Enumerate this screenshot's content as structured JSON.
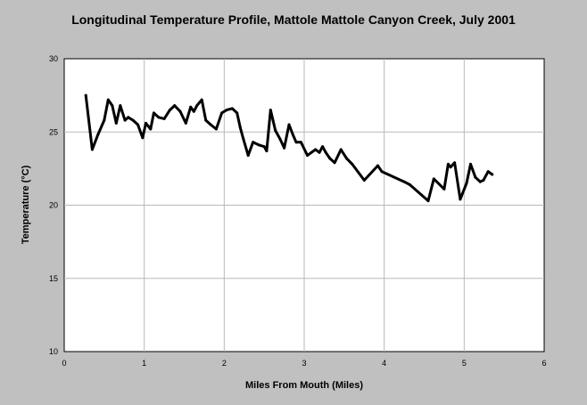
{
  "chart_data": {
    "type": "line",
    "title": "Longitudinal Temperature Profile, Mattole Mattole Canyon Creek, July 2001",
    "xlabel": "Miles From Mouth (Miles)",
    "ylabel": "Temperature (°C)",
    "xlim": [
      0,
      6
    ],
    "ylim": [
      10,
      30
    ],
    "xticks": [
      "0",
      "1",
      "2",
      "3",
      "4",
      "5",
      "6"
    ],
    "yticks": [
      "10",
      "15",
      "20",
      "25",
      "30"
    ],
    "grid": true,
    "line_color": "#000000",
    "x": [
      0.27,
      0.35,
      0.42,
      0.5,
      0.55,
      0.6,
      0.65,
      0.7,
      0.76,
      0.8,
      0.86,
      0.92,
      0.98,
      1.02,
      1.08,
      1.12,
      1.18,
      1.25,
      1.32,
      1.38,
      1.45,
      1.52,
      1.58,
      1.62,
      1.66,
      1.72,
      1.77,
      1.83,
      1.9,
      1.97,
      2.03,
      2.1,
      2.16,
      2.2,
      2.24,
      2.3,
      2.36,
      2.44,
      2.5,
      2.53,
      2.58,
      2.64,
      2.7,
      2.75,
      2.81,
      2.86,
      2.9,
      2.96,
      3.04,
      3.09,
      3.14,
      3.19,
      3.22,
      3.23,
      3.27,
      3.32,
      3.38,
      3.46,
      3.53,
      3.6,
      3.75,
      3.92,
      3.97,
      4.25,
      4.32,
      4.55,
      4.62,
      4.75,
      4.8,
      4.83,
      4.88,
      4.95,
      5.03,
      5.08,
      5.14,
      5.2,
      5.24,
      5.3,
      5.35
    ],
    "y": [
      27.5,
      23.8,
      24.8,
      25.8,
      27.2,
      26.8,
      25.6,
      26.8,
      25.8,
      26.0,
      25.8,
      25.5,
      24.6,
      25.6,
      25.2,
      26.3,
      26.0,
      25.9,
      26.5,
      26.8,
      26.4,
      25.6,
      26.7,
      26.4,
      26.8,
      27.2,
      25.8,
      25.5,
      25.2,
      26.3,
      26.5,
      26.6,
      26.3,
      25.3,
      24.5,
      23.4,
      24.3,
      24.1,
      24.0,
      23.7,
      26.5,
      25.1,
      24.5,
      23.9,
      25.5,
      24.8,
      24.3,
      24.3,
      23.4,
      23.6,
      23.8,
      23.6,
      23.9,
      24.0,
      23.6,
      23.2,
      22.9,
      23.8,
      23.2,
      22.8,
      21.7,
      22.7,
      22.3,
      21.6,
      21.4,
      20.3,
      21.8,
      21.1,
      22.8,
      22.6,
      22.9,
      20.4,
      21.5,
      22.8,
      21.9,
      21.6,
      21.7,
      22.3,
      22.1
    ]
  }
}
